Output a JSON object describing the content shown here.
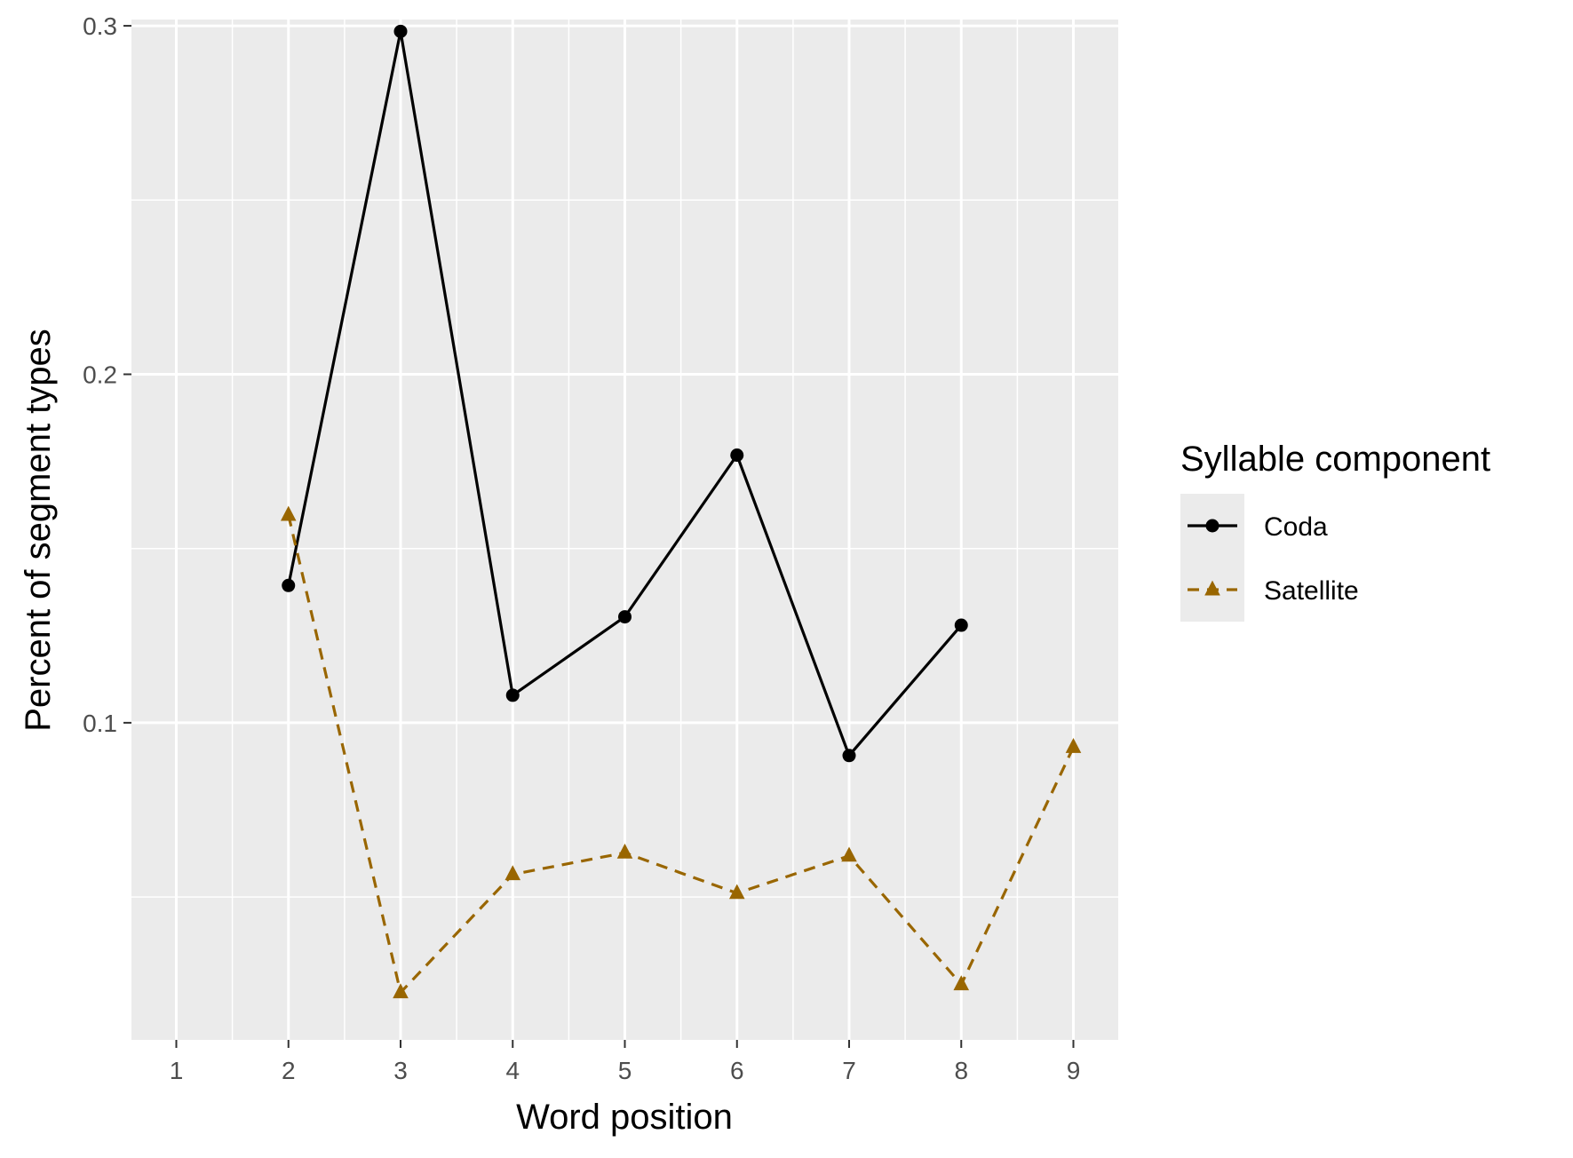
{
  "chart_data": {
    "type": "line",
    "xlabel": "Word position",
    "ylabel": "Percent of segment types",
    "x": [
      1,
      2,
      3,
      4,
      5,
      6,
      7,
      8,
      9
    ],
    "x_tick_labels": [
      "1",
      "2",
      "3",
      "4",
      "5",
      "6",
      "7",
      "8",
      "9"
    ],
    "xlim": [
      0.6,
      9.4
    ],
    "ylim": [
      0.009,
      0.3018
    ],
    "y_ticks": [
      0.1,
      0.2,
      0.3
    ],
    "y_tick_labels": [
      "0.1",
      "0.2",
      "0.3"
    ],
    "y_minor_ticks": [
      0.05,
      0.15,
      0.25
    ],
    "grid": true,
    "legend": {
      "title": "Syllable component",
      "placement": "right"
    },
    "series": [
      {
        "name": "Coda",
        "color": "#000000",
        "line_style": "solid",
        "marker": "circle",
        "x": [
          2,
          3,
          4,
          5,
          6,
          7,
          8
        ],
        "values": [
          0.1394,
          0.2984,
          0.1079,
          0.1304,
          0.1768,
          0.0906,
          0.128
        ]
      },
      {
        "name": "Satellite",
        "color": "#996600",
        "line_style": "dashed",
        "marker": "triangle",
        "x": [
          2,
          3,
          4,
          5,
          6,
          7,
          8,
          9
        ],
        "values": [
          0.1596,
          0.0226,
          0.0565,
          0.0627,
          0.0511,
          0.0618,
          0.0249,
          0.093
        ]
      }
    ]
  }
}
